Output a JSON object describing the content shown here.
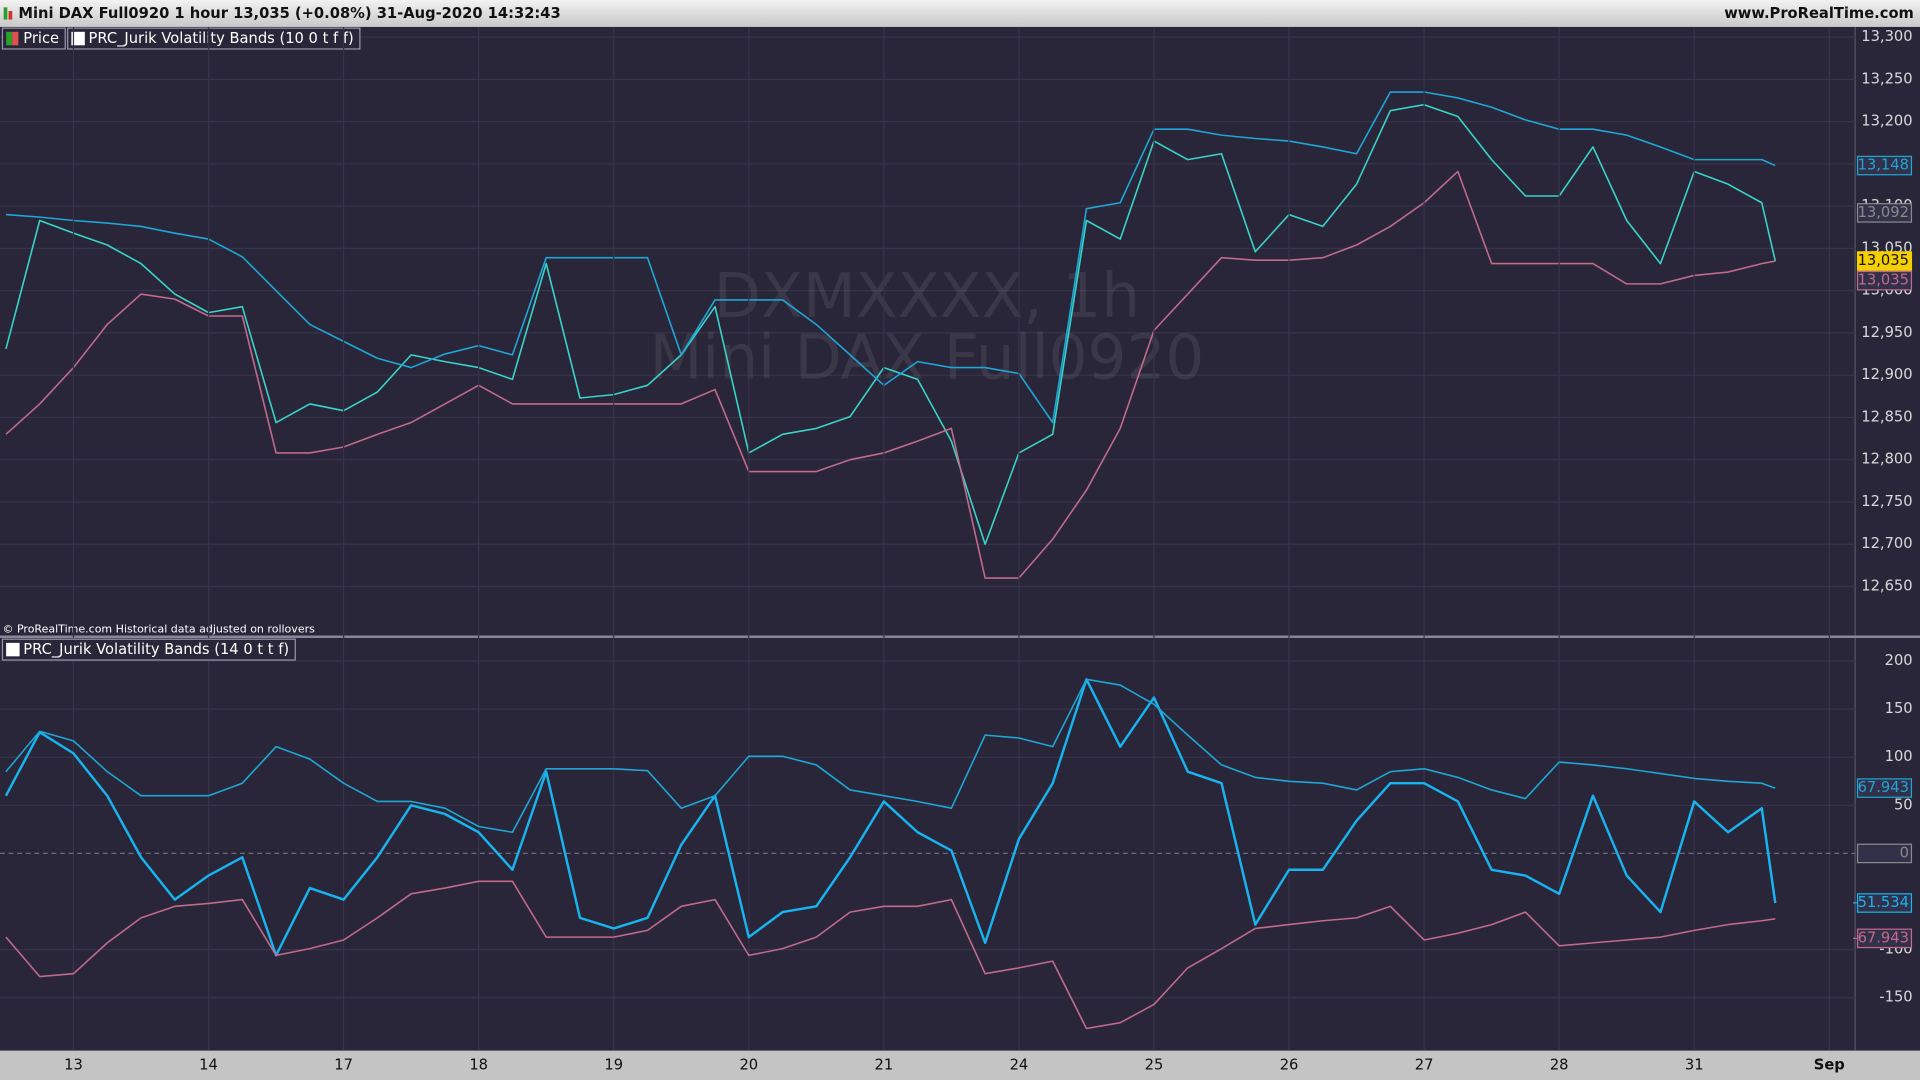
{
  "header": {
    "title": "Mini DAX Full0920 1 hour 13,035 (+0.08%) 31-Aug-2020 14:32:43",
    "site": "www.ProRealTime.com",
    "footnote": "© ProRealTime.com  Historical data adjusted on rollovers"
  },
  "chart_data": [
    {
      "type": "line",
      "indicator": "PRC_Jurik Volatility Bands (10 0 t f f)",
      "watermark": [
        "DXMXXXX, 1h",
        "Mini DAX Full0920"
      ],
      "x": [
        -0.5,
        -0.25,
        0,
        0.25,
        0.5,
        0.75,
        1,
        1.25,
        1.5,
        1.75,
        2,
        2.25,
        2.5,
        2.75,
        3,
        3.25,
        3.5,
        3.75,
        4,
        4.25,
        4.5,
        4.75,
        5,
        5.25,
        5.5,
        5.75,
        6,
        6.25,
        6.5,
        6.75,
        7,
        7.25,
        7.5,
        7.75,
        8,
        8.25,
        8.5,
        8.75,
        9,
        9.25,
        9.5,
        9.75,
        10,
        10.25,
        10.5,
        10.75,
        11,
        11.25,
        11.5,
        11.75,
        12,
        12.25,
        12.5,
        12.6
      ],
      "xlim": [
        -0.544,
        13.191
      ],
      "ylim": [
        12592,
        13312
      ],
      "yticks": [
        {
          "value": 12650,
          "label": "12,650"
        },
        {
          "value": 12700,
          "label": "12,700"
        },
        {
          "value": 12750,
          "label": "12,750"
        },
        {
          "value": 12800,
          "label": "12,800"
        },
        {
          "value": 12850,
          "label": "12,850"
        },
        {
          "value": 12900,
          "label": "12,900"
        },
        {
          "value": 12950,
          "label": "12,950"
        },
        {
          "value": 13000,
          "label": "13,000"
        },
        {
          "value": 13050,
          "label": "13,050"
        },
        {
          "value": 13100,
          "label": "13,100"
        },
        {
          "value": 13150,
          "label": "13,150"
        },
        {
          "value": 13200,
          "label": "13,200"
        },
        {
          "value": 13250,
          "label": "13,250"
        },
        {
          "value": 13300,
          "label": "13,300"
        }
      ],
      "grid": true,
      "series": [
        {
          "name": "Price",
          "color": "#38d4c8",
          "box_color": "#f5d000",
          "last_label": "13,035",
          "values": [
            12931,
            13083,
            13068,
            13054,
            13032,
            12996,
            12974,
            12981,
            12844,
            12866,
            12858,
            12880,
            12924,
            12916,
            12909,
            12895,
            13032,
            12873,
            12877,
            12888,
            12924,
            12981,
            12808,
            12830,
            12837,
            12851,
            12909,
            12895,
            12822,
            12700,
            12808,
            12830,
            13083,
            13061,
            13177,
            13155,
            13162,
            13046,
            13090,
            13076,
            13126,
            13213,
            13220,
            13206,
            13155,
            13112,
            13112,
            13170,
            13083,
            13032,
            13141,
            13126,
            13104,
            13035
          ]
        },
        {
          "color": "#1ea6d6",
          "last_label": "13,148",
          "values": [
            13090,
            13087,
            13083,
            13080,
            13076,
            13068,
            13061,
            13040,
            13000,
            12960,
            12940,
            12920,
            12909,
            12925,
            12935,
            12924,
            13039,
            13039,
            13039,
            13039,
            12924,
            12989,
            12989,
            12989,
            12960,
            12924,
            12888,
            12916,
            12909,
            12909,
            12902,
            12844,
            13097,
            13104,
            13191,
            13191,
            13184,
            13180,
            13177,
            13170,
            13162,
            13235,
            13235,
            13228,
            13217,
            13202,
            13191,
            13191,
            13184,
            13170,
            13155,
            13155,
            13155,
            13148
          ]
        },
        {
          "color": "#c06a8c",
          "last_label": "13,035",
          "values": [
            12830,
            12866,
            12909,
            12960,
            12996,
            12990,
            12970,
            12970,
            12808,
            12808,
            12815,
            12830,
            12844,
            12866,
            12888,
            12866,
            12866,
            12866,
            12866,
            12866,
            12866,
            12883,
            12786,
            12786,
            12786,
            12800,
            12808,
            12822,
            12837,
            12660,
            12660,
            12706,
            12764,
            12837,
            12953,
            12996,
            13039,
            13036,
            13036,
            13039,
            13054,
            13076,
            13104,
            13141,
            13032,
            13032,
            13032,
            13032,
            13008,
            13008,
            13018,
            13022,
            13032,
            13035
          ]
        }
      ],
      "markers": [
        {
          "value": 13092,
          "label": "13,092",
          "color": "#8a8a8a"
        }
      ]
    },
    {
      "type": "line",
      "indicator": "PRC_Jurik Volatility Bands (14 0 t t f)",
      "x": [
        -0.5,
        -0.25,
        0,
        0.25,
        0.5,
        0.75,
        1,
        1.25,
        1.5,
        1.75,
        2,
        2.25,
        2.5,
        2.75,
        3,
        3.25,
        3.5,
        3.75,
        4,
        4.25,
        4.5,
        4.75,
        5,
        5.25,
        5.5,
        5.75,
        6,
        6.25,
        6.5,
        6.75,
        7,
        7.25,
        7.5,
        7.75,
        8,
        8.25,
        8.5,
        8.75,
        9,
        9.25,
        9.5,
        9.75,
        10,
        10.25,
        10.5,
        10.75,
        11,
        11.25,
        11.5,
        11.75,
        12,
        12.25,
        12.5,
        12.6
      ],
      "xlim": [
        -0.544,
        13.191
      ],
      "xticks": [
        {
          "value": 0,
          "label": "13"
        },
        {
          "value": 1,
          "label": "14"
        },
        {
          "value": 2,
          "label": "17"
        },
        {
          "value": 3,
          "label": "18"
        },
        {
          "value": 4,
          "label": "19"
        },
        {
          "value": 5,
          "label": "20"
        },
        {
          "value": 6,
          "label": "21"
        },
        {
          "value": 7,
          "label": "24"
        },
        {
          "value": 8,
          "label": "25"
        },
        {
          "value": 9,
          "label": "26"
        },
        {
          "value": 10,
          "label": "27"
        },
        {
          "value": 11,
          "label": "28"
        },
        {
          "value": 12,
          "label": "31"
        },
        {
          "value": 13,
          "label": "Sep"
        }
      ],
      "ylim": [
        -205,
        224
      ],
      "yticks": [
        -150,
        -100,
        50,
        100,
        150,
        200
      ],
      "grid": true,
      "hline": 0,
      "series": [
        {
          "color": "#18b4f0",
          "width": 2,
          "values": [
            60,
            126,
            104,
            60,
            -4,
            -48,
            -23,
            -4,
            -106,
            -36,
            -48,
            -4,
            50,
            41,
            22,
            -17,
            85,
            -67,
            -78,
            -67,
            9,
            60,
            -87,
            -61,
            -55,
            -4,
            54,
            22,
            3,
            -93,
            15,
            73,
            181,
            111,
            162,
            85,
            73,
            -74,
            -17,
            -17,
            34,
            73,
            73,
            54,
            -17,
            -23,
            -42,
            60,
            -23,
            -61,
            54,
            22,
            47,
            -51.534
          ]
        },
        {
          "color": "#1ea6d6",
          "values": [
            85,
            127,
            117,
            85,
            60,
            60,
            60,
            73,
            111,
            98,
            73,
            54,
            54,
            47,
            28,
            22,
            88,
            88,
            88,
            86,
            47,
            60,
            101,
            101,
            92,
            66,
            60,
            54,
            47,
            123,
            120,
            111,
            181,
            175,
            155,
            123,
            92,
            79,
            75,
            73,
            66,
            85,
            88,
            79,
            66,
            57,
            95,
            92,
            88,
            83,
            78,
            75,
            73,
            67.943
          ]
        },
        {
          "color": "#c06a8c",
          "values": [
            -87,
            -128,
            -125,
            -93,
            -67,
            -55,
            -52,
            -48,
            -106,
            -99,
            -90,
            -67,
            -42,
            -36,
            -29,
            -29,
            -87,
            -87,
            -87,
            -80,
            -55,
            -48,
            -106,
            -99,
            -87,
            -61,
            -55,
            -55,
            -48,
            -125,
            -119,
            -112,
            -182,
            -176,
            -157,
            -119,
            -99,
            -78,
            -74,
            -70,
            -67,
            -55,
            -90,
            -83,
            -74,
            -61,
            -96,
            -93,
            -90,
            -87,
            -80,
            -74,
            -70,
            -67.943
          ]
        }
      ]
    }
  ]
}
